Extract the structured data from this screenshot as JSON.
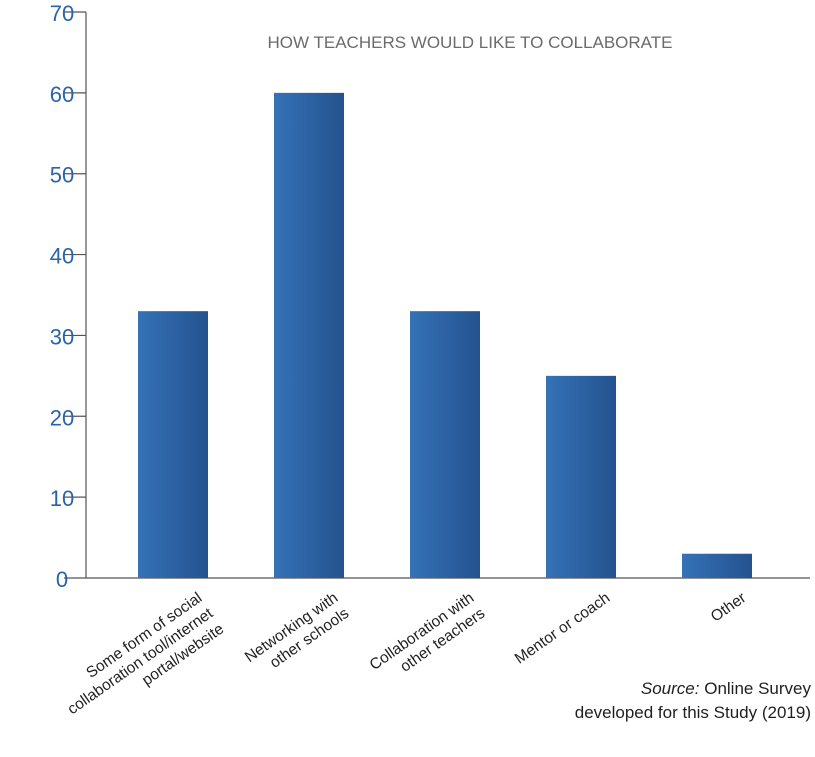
{
  "chart_data": {
    "type": "bar",
    "title": "HOW TEACHERS WOULD LIKE TO COLLABORATE",
    "categories": [
      [
        "Some form of social",
        "collaboration tool/internet",
        "portal/website"
      ],
      [
        "Networking with",
        "other schools"
      ],
      [
        "Collaboration with",
        "other teachers"
      ],
      [
        "Mentor or coach"
      ],
      [
        "Other"
      ]
    ],
    "values": [
      33,
      60,
      33,
      25,
      3
    ],
    "ylim": [
      0,
      70
    ],
    "yticks": [
      0,
      10,
      20,
      30,
      40,
      50,
      60,
      70
    ],
    "xlabel": "",
    "ylabel": "",
    "grid": false,
    "colors": {
      "bar_light": "#3572b8",
      "bar_dark": "#24528e",
      "tick_label": "#2a64a8",
      "axis": "#555555",
      "title": "#6b6b6b"
    }
  },
  "source": {
    "label": "Source:",
    "line1_rest": "Online Survey",
    "line2": "developed for this Study (2019)"
  }
}
